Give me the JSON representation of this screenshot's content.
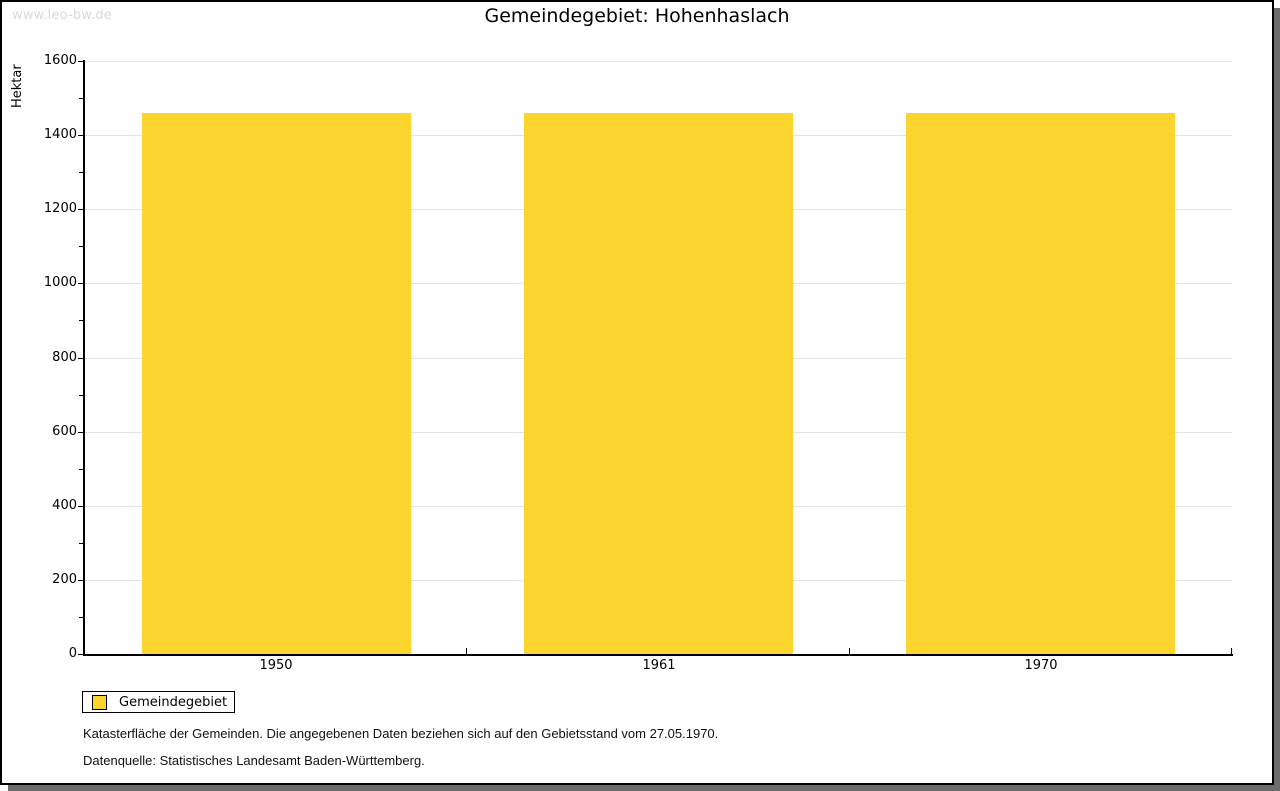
{
  "watermark": "www.leo-bw.de",
  "title": "Gemeindegebiet: Hohenhaslach",
  "legend": {
    "items": [
      {
        "label": "Gemeindegebiet",
        "color": "#fcd42e"
      }
    ]
  },
  "footer": {
    "note": "Katasterfläche der Gemeinden. Die angegebenen Daten beziehen sich auf den Gebietsstand vom 27.05.1970.",
    "source": "Datenquelle: Statistisches Landesamt Baden-Württemberg."
  },
  "colors": {
    "bar": "#fcd42e",
    "gridline": "#e2e2e2",
    "axis": "#000000",
    "watermark": "#d9d9d9",
    "frame_shadow": "#6b6b6b",
    "background": "#ffffff"
  },
  "chart_data": {
    "type": "bar",
    "title": "Gemeindegebiet: Hohenhaslach",
    "categories": [
      "1950",
      "1961",
      "1970"
    ],
    "series": [
      {
        "name": "Gemeindegebiet",
        "color": "#fcd42e",
        "values": [
          1460,
          1460,
          1460
        ]
      }
    ],
    "xlabel": "",
    "ylabel": "Hektar",
    "ylim": [
      0,
      1600
    ],
    "ytick_major": 200,
    "ytick_minor": 100,
    "grid": true,
    "legend_position": "bottom-left"
  }
}
